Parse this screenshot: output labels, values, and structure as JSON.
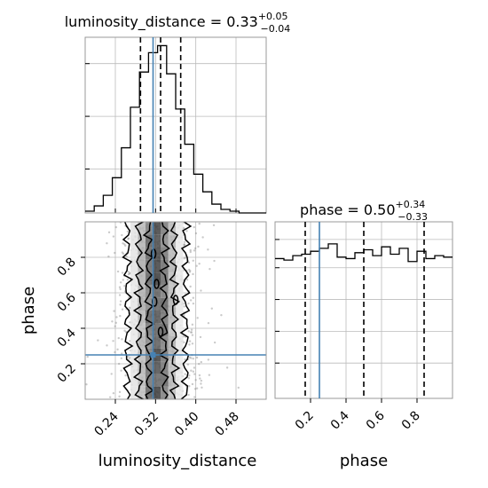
{
  "chart_data": {
    "type": "corner",
    "grid": true,
    "parameters": [
      "luminosity_distance",
      "phase"
    ],
    "truths": {
      "luminosity_distance": 0.315,
      "phase": 0.25
    },
    "luminosity_distance": {
      "title": "luminosity_distance",
      "median": "0.33",
      "upper": "+0.05",
      "lower": "−0.04",
      "quantiles": [
        0.29,
        0.33,
        0.37
      ],
      "xlim": [
        0.18,
        0.54
      ],
      "ticks": [
        "0.24",
        "0.32",
        "0.40",
        "0.48"
      ],
      "hist_edges": [
        0.18,
        0.198,
        0.216,
        0.234,
        0.252,
        0.27,
        0.288,
        0.306,
        0.324,
        0.342,
        0.36,
        0.378,
        0.396,
        0.414,
        0.432,
        0.45,
        0.468,
        0.486,
        0.504,
        0.522,
        0.54
      ],
      "hist_counts": [
        1,
        4,
        10,
        20,
        37,
        60,
        80,
        91,
        95,
        79,
        59,
        39,
        22,
        12,
        5,
        2,
        1,
        0,
        0,
        0
      ]
    },
    "phase": {
      "title": "phase",
      "median": "0.50",
      "upper": "+0.34",
      "lower": "−0.33",
      "quantiles": [
        0.17,
        0.5,
        0.84
      ],
      "xlim": [
        0.0,
        1.0
      ],
      "ticks": [
        "0.2",
        "0.4",
        "0.6",
        "0.8"
      ],
      "hist_edges": [
        0.0,
        0.05,
        0.1,
        0.15,
        0.2,
        0.25,
        0.3,
        0.35,
        0.4,
        0.45,
        0.5,
        0.55,
        0.6,
        0.65,
        0.7,
        0.75,
        0.8,
        0.85,
        0.9,
        0.95,
        1.0
      ],
      "hist_counts": [
        9.5,
        9.4,
        9.7,
        9.8,
        10.0,
        10.2,
        10.5,
        9.6,
        9.5,
        9.9,
        10.1,
        9.7,
        10.3,
        9.8,
        10.2,
        9.3,
        10.0,
        9.5,
        9.7,
        9.6
      ]
    },
    "joint": {
      "xlabel": "luminosity_distance",
      "ylabel": "phase",
      "xlim": [
        0.18,
        0.54
      ],
      "ylim": [
        0.0,
        1.0
      ],
      "x_ticks": [
        "0.24",
        "0.32",
        "0.40",
        "0.48"
      ],
      "y_ticks": [
        "0.2",
        "0.4",
        "0.6",
        "0.8"
      ]
    }
  }
}
